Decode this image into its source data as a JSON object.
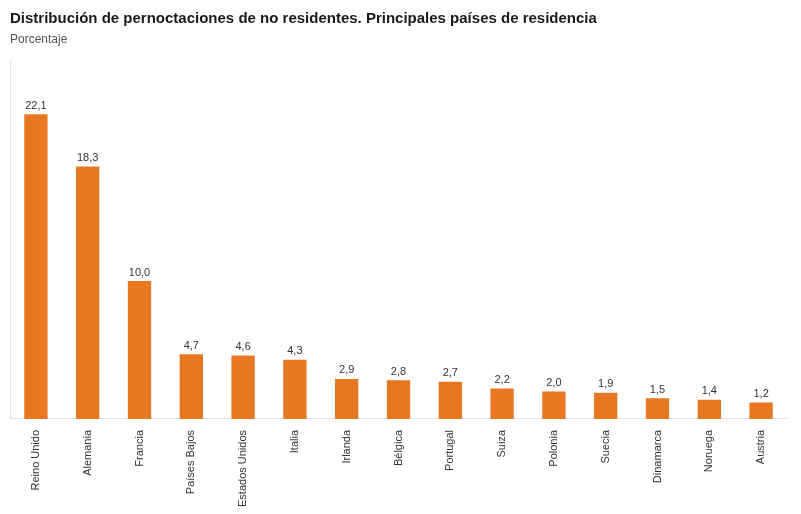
{
  "chart_data": {
    "type": "bar",
    "title": "Distribución de pernoctaciones de no residentes. Principales países de residencia",
    "subtitle": "Porcentaje",
    "categories": [
      "Reino Unido",
      "Alemania",
      "Francia",
      "Países Bajos",
      "Estados Unidos",
      "Italia",
      "Irlanda",
      "Bélgica",
      "Portugal",
      "Suiza",
      "Polonia",
      "Suecia",
      "Dinamarca",
      "Noruega",
      "Austria"
    ],
    "values": [
      22.1,
      18.3,
      10.0,
      4.7,
      4.6,
      4.3,
      2.9,
      2.8,
      2.7,
      2.2,
      2.0,
      1.9,
      1.5,
      1.4,
      1.2
    ],
    "value_labels": [
      "22,1",
      "18,3",
      "10,0",
      "4,7",
      "4,6",
      "4,3",
      "2,9",
      "2,8",
      "2,7",
      "2,2",
      "2,0",
      "1,9",
      "1,5",
      "1,4",
      "1,2"
    ],
    "data_labels": true,
    "color": "#E87722",
    "ylim": [
      0,
      26
    ],
    "tick_labels": "x",
    "grid": false
  }
}
